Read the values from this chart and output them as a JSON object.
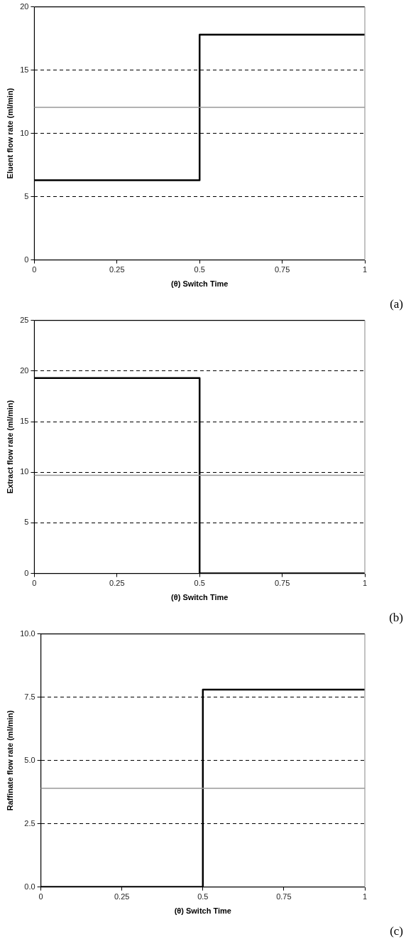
{
  "chart_data": [
    {
      "type": "step",
      "xlabel": "(θ) Switch Time",
      "ylabel": "Eluent flow rate (ml/min)",
      "annotations": [
        "(a)"
      ],
      "x": [
        0,
        0.5,
        1
      ],
      "series": [
        {
          "color": "#000000",
          "values": [
            6.3,
            17.8,
            17.8
          ]
        }
      ],
      "ref_lines": [
        {
          "axis": "y",
          "value": 12.05,
          "color": "#999999"
        }
      ],
      "xlim": [
        0,
        1
      ],
      "xticks": [
        0,
        0.25,
        0.5,
        0.75,
        1
      ],
      "ylim": [
        0,
        20
      ],
      "yticks": [
        0,
        5,
        10,
        15,
        20
      ],
      "grid": "y",
      "legend": false
    },
    {
      "type": "step",
      "xlabel": "(θ) Switch Time",
      "ylabel": "Extract flow rate (ml/min)",
      "annotations": [
        "(b)"
      ],
      "x": [
        0,
        0.5,
        1
      ],
      "series": [
        {
          "color": "#000000",
          "values": [
            19.3,
            0,
            0
          ]
        }
      ],
      "ref_lines": [
        {
          "axis": "y",
          "value": 9.7,
          "color": "#999999"
        }
      ],
      "xlim": [
        0,
        1
      ],
      "xticks": [
        0,
        0.25,
        0.5,
        0.75,
        1
      ],
      "ylim": [
        0,
        25
      ],
      "yticks": [
        0,
        5,
        10,
        15,
        20,
        25
      ],
      "grid": "y",
      "legend": false
    },
    {
      "type": "step",
      "xlabel": "(θ) Switch Time",
      "ylabel": "Raffinate flow rate (ml/min)",
      "annotations": [
        "(c)"
      ],
      "x": [
        0,
        0.5,
        1
      ],
      "series": [
        {
          "color": "#000000",
          "values": [
            0,
            7.8,
            7.8
          ]
        }
      ],
      "ref_lines": [
        {
          "axis": "y",
          "value": 3.9,
          "color": "#999999"
        }
      ],
      "xlim": [
        0,
        1
      ],
      "xticks": [
        0,
        0.25,
        0.5,
        0.75,
        1
      ],
      "ylim": [
        0,
        10
      ],
      "yticks": [
        {
          "value": 0,
          "label": "0.0"
        },
        {
          "value": 2.5,
          "label": "2.5"
        },
        {
          "value": 5,
          "label": "5.0"
        },
        {
          "value": 7.5,
          "label": "7.5"
        },
        {
          "value": 10,
          "label": "10.0"
        }
      ],
      "grid": "y",
      "legend": false
    }
  ]
}
